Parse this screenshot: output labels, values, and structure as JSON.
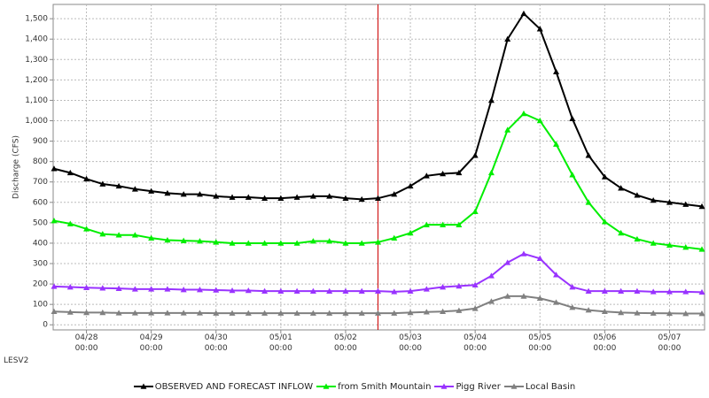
{
  "chart_data": {
    "type": "line",
    "station": "LESV2",
    "y_label": "Discharge (CFS)",
    "x": [
      "04/27 12:00",
      "04/27 18:00",
      "04/28 00:00",
      "04/28 06:00",
      "04/28 12:00",
      "04/28 18:00",
      "04/29 00:00",
      "04/29 06:00",
      "04/29 12:00",
      "04/29 18:00",
      "04/30 00:00",
      "04/30 06:00",
      "04/30 12:00",
      "04/30 18:00",
      "05/01 00:00",
      "05/01 06:00",
      "05/01 12:00",
      "05/01 18:00",
      "05/02 00:00",
      "05/02 06:00",
      "05/02 12:00",
      "05/02 18:00",
      "05/03 00:00",
      "05/03 06:00",
      "05/03 12:00",
      "05/03 18:00",
      "05/04 00:00",
      "05/04 06:00",
      "05/04 12:00",
      "05/04 18:00",
      "05/05 00:00",
      "05/05 06:00",
      "05/05 12:00",
      "05/05 18:00",
      "05/06 00:00",
      "05/06 06:00",
      "05/06 12:00",
      "05/06 18:00",
      "05/07 00:00",
      "05/07 06:00",
      "05/07 12:00"
    ],
    "series": [
      {
        "name": "OBSERVED AND FORECAST INFLOW",
        "color": "#000000",
        "values": [
          765,
          745,
          715,
          690,
          680,
          665,
          655,
          645,
          640,
          640,
          630,
          625,
          625,
          620,
          620,
          625,
          630,
          630,
          620,
          615,
          620,
          640,
          680,
          730,
          740,
          745,
          830,
          1100,
          1400,
          1525,
          1450,
          1240,
          1010,
          830,
          725,
          670,
          635,
          610,
          600,
          590,
          580
        ]
      },
      {
        "name": "from Smith Mountain",
        "color": "#00ee00",
        "values": [
          510,
          495,
          470,
          445,
          440,
          440,
          425,
          415,
          412,
          410,
          405,
          400,
          400,
          400,
          400,
          400,
          410,
          410,
          400,
          400,
          405,
          425,
          450,
          490,
          490,
          490,
          555,
          745,
          955,
          1035,
          1000,
          885,
          735,
          600,
          505,
          450,
          420,
          400,
          390,
          380,
          370
        ]
      },
      {
        "name": "Pigg River",
        "color": "#9933ff",
        "values": [
          188,
          185,
          182,
          180,
          178,
          175,
          175,
          175,
          172,
          172,
          170,
          168,
          168,
          165,
          165,
          165,
          165,
          165,
          165,
          165,
          165,
          162,
          165,
          175,
          185,
          190,
          195,
          240,
          305,
          348,
          325,
          245,
          185,
          165,
          165,
          165,
          165,
          162,
          162,
          162,
          160
        ]
      },
      {
        "name": "Local Basin",
        "color": "#808080",
        "values": [
          65,
          62,
          60,
          60,
          58,
          58,
          58,
          58,
          58,
          58,
          57,
          57,
          57,
          57,
          57,
          57,
          57,
          57,
          57,
          57,
          57,
          57,
          60,
          63,
          65,
          70,
          80,
          115,
          140,
          140,
          130,
          110,
          85,
          72,
          65,
          60,
          58,
          57,
          56,
          55,
          55
        ]
      }
    ],
    "xlim": [
      "04/27 12:00",
      "05/07 12:00"
    ],
    "xticks": [
      "04/28 00:00",
      "04/29 00:00",
      "04/30 00:00",
      "05/01 00:00",
      "05/02 00:00",
      "05/03 00:00",
      "05/04 00:00",
      "05/05 00:00",
      "05/06 00:00",
      "05/07 00:00"
    ],
    "ylim": [
      -25,
      1570
    ],
    "yticks": [
      0,
      100,
      200,
      300,
      400,
      500,
      600,
      700,
      800,
      900,
      {
        "value": 1000,
        "label": "1,000"
      },
      {
        "value": 1100,
        "label": "1,100"
      },
      {
        "value": 1200,
        "label": "1,200"
      },
      {
        "value": 1300,
        "label": "1,300"
      },
      {
        "value": 1400,
        "label": "1,400"
      },
      {
        "value": 1500,
        "label": "1,500"
      }
    ],
    "forecast_line": "05/02 12:00",
    "forecast_line_color": "#cc0000",
    "grid": true
  }
}
